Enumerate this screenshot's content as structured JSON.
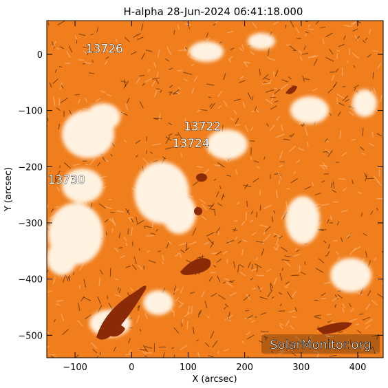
{
  "title": "H-alpha 28-Jun-2024 06:41:18.000",
  "axes": {
    "xlabel": "X (arcsec)",
    "ylabel": "Y (arcsec)",
    "x_range": [
      -150,
      445
    ],
    "y_range": [
      -540,
      60
    ],
    "x_ticks": [
      {
        "value": -100,
        "label": "−100"
      },
      {
        "value": 0,
        "label": "0"
      },
      {
        "value": 100,
        "label": "100"
      },
      {
        "value": 200,
        "label": "200"
      },
      {
        "value": 300,
        "label": "300"
      },
      {
        "value": 400,
        "label": "400"
      }
    ],
    "y_ticks": [
      {
        "value": 0,
        "label": "0"
      },
      {
        "value": -100,
        "label": "−100"
      },
      {
        "value": -200,
        "label": "−200"
      },
      {
        "value": -300,
        "label": "−300"
      },
      {
        "value": -400,
        "label": "−400"
      },
      {
        "value": -500,
        "label": "−500"
      }
    ]
  },
  "regions": [
    {
      "id": "13726",
      "label": "13726",
      "x": -48,
      "y": 3
    },
    {
      "id": "13722",
      "label": "13722",
      "x": 125,
      "y": -135
    },
    {
      "id": "13724",
      "label": "13724",
      "x": 105,
      "y": -165
    },
    {
      "id": "13730",
      "label": "13730",
      "x": -115,
      "y": -230
    }
  ],
  "watermark": "SolarMonitor.org",
  "colors": {
    "background": "#f07e1c",
    "plage": "#fff3e3",
    "dark_feature": "#8a2a06",
    "frame": "#000000"
  }
}
